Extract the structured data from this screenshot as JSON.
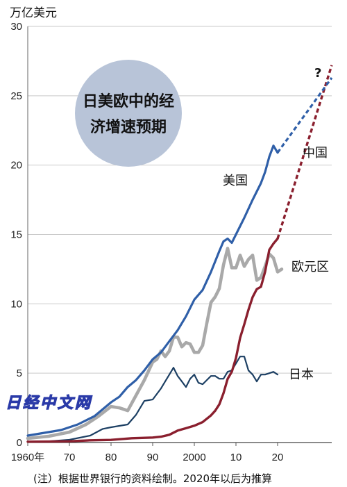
{
  "chart_data": {
    "type": "line",
    "unit_label": "万亿美元",
    "ylim": [
      0,
      30
    ],
    "xlim": [
      1960,
      2033
    ],
    "y_ticks": [
      {
        "v": 0,
        "label": "0"
      },
      {
        "v": 5,
        "label": "5"
      },
      {
        "v": 10,
        "label": "10"
      },
      {
        "v": 15,
        "label": "15"
      },
      {
        "v": 20,
        "label": "20"
      },
      {
        "v": 25,
        "label": "25"
      },
      {
        "v": 30,
        "label": "30"
      }
    ],
    "x_ticks": [
      {
        "v": 1960,
        "label": "1960年"
      },
      {
        "v": 1970,
        "label": "70"
      },
      {
        "v": 1980,
        "label": "80"
      },
      {
        "v": 1990,
        "label": "90"
      },
      {
        "v": 2000,
        "label": "2000"
      },
      {
        "v": 2010,
        "label": "10"
      },
      {
        "v": 2020,
        "label": "20"
      }
    ],
    "badge": {
      "line1": "日美欧中的经",
      "line2": "济增速预期"
    },
    "question_mark": "?",
    "note": "(注）根据世界银行的资料绘制。2020年以后为推算",
    "watermark": "日经中文网",
    "series": [
      {
        "name": "美国",
        "color": "#2f5fa8",
        "points": [
          [
            1960,
            0.5
          ],
          [
            1962,
            0.6
          ],
          [
            1964,
            0.7
          ],
          [
            1966,
            0.8
          ],
          [
            1968,
            0.9
          ],
          [
            1970,
            1.1
          ],
          [
            1972,
            1.3
          ],
          [
            1974,
            1.6
          ],
          [
            1976,
            1.9
          ],
          [
            1978,
            2.4
          ],
          [
            1980,
            2.9
          ],
          [
            1982,
            3.3
          ],
          [
            1984,
            4.0
          ],
          [
            1986,
            4.5
          ],
          [
            1988,
            5.2
          ],
          [
            1990,
            6.0
          ],
          [
            1992,
            6.5
          ],
          [
            1994,
            7.3
          ],
          [
            1996,
            8.1
          ],
          [
            1998,
            9.1
          ],
          [
            2000,
            10.3
          ],
          [
            2002,
            11.0
          ],
          [
            2004,
            12.3
          ],
          [
            2006,
            13.8
          ],
          [
            2007,
            14.5
          ],
          [
            2008,
            14.7
          ],
          [
            2009,
            14.4
          ],
          [
            2010,
            15.0
          ],
          [
            2012,
            16.2
          ],
          [
            2014,
            17.5
          ],
          [
            2016,
            18.7
          ],
          [
            2017,
            19.5
          ],
          [
            2018,
            20.6
          ],
          [
            2019,
            21.4
          ],
          [
            2020,
            20.9
          ]
        ],
        "projection": [
          [
            2020,
            20.9
          ],
          [
            2033,
            26.3
          ]
        ]
      },
      {
        "name": "中国",
        "color": "#8a1f2e",
        "points": [
          [
            1960,
            0.06
          ],
          [
            1965,
            0.07
          ],
          [
            1970,
            0.09
          ],
          [
            1975,
            0.16
          ],
          [
            1980,
            0.19
          ],
          [
            1985,
            0.31
          ],
          [
            1990,
            0.36
          ],
          [
            1992,
            0.42
          ],
          [
            1994,
            0.56
          ],
          [
            1996,
            0.86
          ],
          [
            1998,
            1.03
          ],
          [
            2000,
            1.21
          ],
          [
            2002,
            1.47
          ],
          [
            2004,
            1.96
          ],
          [
            2005,
            2.29
          ],
          [
            2006,
            2.75
          ],
          [
            2007,
            3.55
          ],
          [
            2008,
            4.59
          ],
          [
            2009,
            5.1
          ],
          [
            2010,
            6.09
          ],
          [
            2011,
            7.55
          ],
          [
            2012,
            8.53
          ],
          [
            2013,
            9.57
          ],
          [
            2014,
            10.48
          ],
          [
            2015,
            11.06
          ],
          [
            2016,
            11.23
          ],
          [
            2017,
            12.31
          ],
          [
            2018,
            13.89
          ],
          [
            2019,
            14.34
          ],
          [
            2020,
            14.7
          ]
        ],
        "projection": [
          [
            2020,
            14.7
          ],
          [
            2033,
            27.2
          ]
        ]
      },
      {
        "name": "欧元区",
        "color": "#a9a9a9",
        "points": [
          [
            1960,
            0.3
          ],
          [
            1965,
            0.45
          ],
          [
            1970,
            0.75
          ],
          [
            1974,
            1.3
          ],
          [
            1977,
            1.9
          ],
          [
            1980,
            2.6
          ],
          [
            1982,
            2.5
          ],
          [
            1984,
            2.3
          ],
          [
            1986,
            3.4
          ],
          [
            1988,
            4.5
          ],
          [
            1990,
            5.8
          ],
          [
            1991,
            6.0
          ],
          [
            1992,
            6.6
          ],
          [
            1993,
            6.2
          ],
          [
            1994,
            6.6
          ],
          [
            1995,
            7.6
          ],
          [
            1996,
            7.6
          ],
          [
            1997,
            6.9
          ],
          [
            1998,
            7.2
          ],
          [
            1999,
            7.1
          ],
          [
            2000,
            6.5
          ],
          [
            2001,
            6.5
          ],
          [
            2002,
            7.0
          ],
          [
            2003,
            8.6
          ],
          [
            2004,
            10.1
          ],
          [
            2005,
            10.5
          ],
          [
            2006,
            11.1
          ],
          [
            2007,
            12.8
          ],
          [
            2008,
            14.0
          ],
          [
            2009,
            12.6
          ],
          [
            2010,
            12.6
          ],
          [
            2011,
            13.5
          ],
          [
            2012,
            12.7
          ],
          [
            2013,
            13.2
          ],
          [
            2014,
            13.5
          ],
          [
            2015,
            11.7
          ],
          [
            2016,
            11.9
          ],
          [
            2017,
            12.7
          ],
          [
            2018,
            13.6
          ],
          [
            2019,
            13.3
          ],
          [
            2020,
            12.3
          ],
          [
            2021,
            12.5
          ]
        ]
      },
      {
        "name": "日本",
        "color": "#1c3f63",
        "points": [
          [
            1960,
            0.04
          ],
          [
            1965,
            0.09
          ],
          [
            1970,
            0.2
          ],
          [
            1975,
            0.5
          ],
          [
            1978,
            0.98
          ],
          [
            1980,
            1.1
          ],
          [
            1982,
            1.2
          ],
          [
            1984,
            1.3
          ],
          [
            1986,
            2.0
          ],
          [
            1988,
            3.0
          ],
          [
            1990,
            3.1
          ],
          [
            1992,
            3.9
          ],
          [
            1993,
            4.4
          ],
          [
            1994,
            4.9
          ],
          [
            1995,
            5.4
          ],
          [
            1996,
            4.8
          ],
          [
            1997,
            4.4
          ],
          [
            1998,
            4.0
          ],
          [
            1999,
            4.6
          ],
          [
            2000,
            4.9
          ],
          [
            2001,
            4.3
          ],
          [
            2002,
            4.2
          ],
          [
            2003,
            4.5
          ],
          [
            2004,
            4.8
          ],
          [
            2005,
            4.8
          ],
          [
            2006,
            4.6
          ],
          [
            2007,
            4.6
          ],
          [
            2008,
            5.1
          ],
          [
            2009,
            5.2
          ],
          [
            2010,
            5.7
          ],
          [
            2011,
            6.2
          ],
          [
            2012,
            6.2
          ],
          [
            2013,
            5.2
          ],
          [
            2014,
            4.9
          ],
          [
            2015,
            4.4
          ],
          [
            2016,
            4.9
          ],
          [
            2017,
            4.9
          ],
          [
            2018,
            5.0
          ],
          [
            2019,
            5.1
          ],
          [
            2020,
            4.9
          ]
        ]
      }
    ]
  }
}
